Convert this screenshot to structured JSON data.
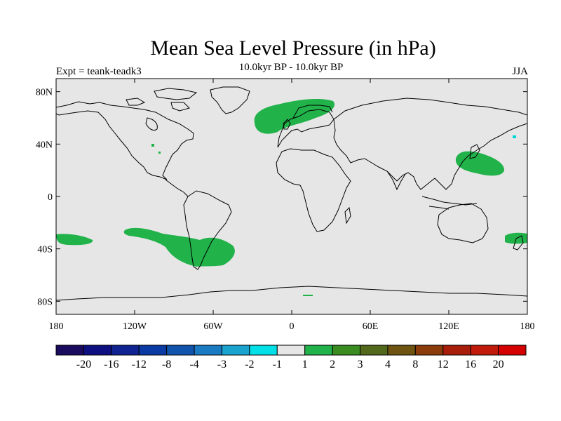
{
  "title": "Mean Sea Level Pressure (in hPa)",
  "subtitle": "10.0kyr BP - 10.0kyr BP",
  "left_label": "Expt = teank-teadk3",
  "right_label": "JJA",
  "map": {
    "projection": "cylindrical-equidistant",
    "lon_range": [
      -180,
      180
    ],
    "lat_range": [
      -90,
      90
    ],
    "land_fill": "#e6e6e6",
    "coastline_color": "#000000",
    "x_ticks": [
      "180",
      "120W",
      "60W",
      "0",
      "60E",
      "120E",
      "180"
    ],
    "y_ticks": [
      "80N",
      "40N",
      "0",
      "40S",
      "80S"
    ],
    "anomaly_regions": [
      {
        "name": "north-atlantic",
        "level": "2",
        "color": "#21b24a"
      },
      {
        "name": "northwest-pacific",
        "level": "2",
        "color": "#21b24a"
      },
      {
        "name": "south-pacific-band",
        "level": "2",
        "color": "#21b24a"
      },
      {
        "name": "southeast-pacific-west",
        "level": "2",
        "color": "#21b24a"
      },
      {
        "name": "southwest-pacific",
        "level": "2",
        "color": "#21b24a"
      },
      {
        "name": "north-pacific-small",
        "level": "-1",
        "color": "#00d5dc"
      }
    ]
  },
  "colorbar": {
    "labels": [
      "-20",
      "-16",
      "-12",
      "-8",
      "-4",
      "-3",
      "-2",
      "-1",
      "1",
      "2",
      "3",
      "4",
      "8",
      "12",
      "16",
      "20"
    ],
    "colors": [
      "#1a0b5e",
      "#0e0f80",
      "#0f2392",
      "#0a3aa3",
      "#1054ae",
      "#1a7ac2",
      "#1aa3cf",
      "#00e0e6",
      "#e6e6e6",
      "#21b24a",
      "#3a8c20",
      "#52681a",
      "#6e5410",
      "#8c3c0a",
      "#a81e0a",
      "#c21a0a",
      "#d40000"
    ]
  }
}
